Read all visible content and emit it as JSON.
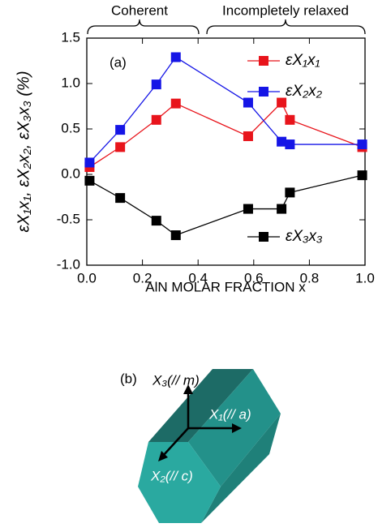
{
  "chart_data": {
    "type": "line",
    "y_label": "εX₁x₁, εX₂x₂, εX₃x₃ (%)",
    "x_label": "AlN MOLAR FRACTION x",
    "annotations": [
      "(a)",
      "Coherent",
      "Incompletely relaxed"
    ],
    "x": [
      0.01,
      0.12,
      0.25,
      0.32,
      0.58,
      0.7,
      0.73,
      0.99
    ],
    "series": [
      {
        "name": "εX₁x₁",
        "color": "#e8141b",
        "legend": "upper right",
        "values": [
          0.08,
          0.3,
          0.6,
          0.78,
          0.42,
          0.79,
          0.6,
          0.3
        ]
      },
      {
        "name": "εX₂x₂",
        "color": "#1515e6",
        "legend": "upper right",
        "values": [
          0.13,
          0.49,
          0.99,
          1.29,
          0.79,
          0.36,
          0.33,
          0.33
        ]
      },
      {
        "name": "εX₃x₃",
        "color": "#000000",
        "legend": "lower right",
        "values": [
          -0.07,
          -0.26,
          -0.51,
          -0.67,
          -0.38,
          -0.38,
          -0.2,
          -0.01
        ]
      }
    ],
    "xlim": [
      0,
      1
    ],
    "xticks": [
      {
        "value": 0,
        "label": "0.0"
      },
      0.2,
      0.4,
      0.6,
      0.8,
      {
        "value": 1,
        "label": "1.0"
      }
    ],
    "ylim": [
      -1,
      1.5
    ],
    "yticks": [
      {
        "value": -1,
        "label": "-1.0"
      },
      -0.5,
      {
        "value": 0,
        "label": "0.0"
      },
      0.5,
      {
        "value": 1,
        "label": "1.0"
      },
      1.5
    ]
  },
  "diagram": {
    "label": "(b)",
    "axes": [
      "X₃(// m)",
      "X₁(// a)",
      "X₂(// c)"
    ]
  }
}
